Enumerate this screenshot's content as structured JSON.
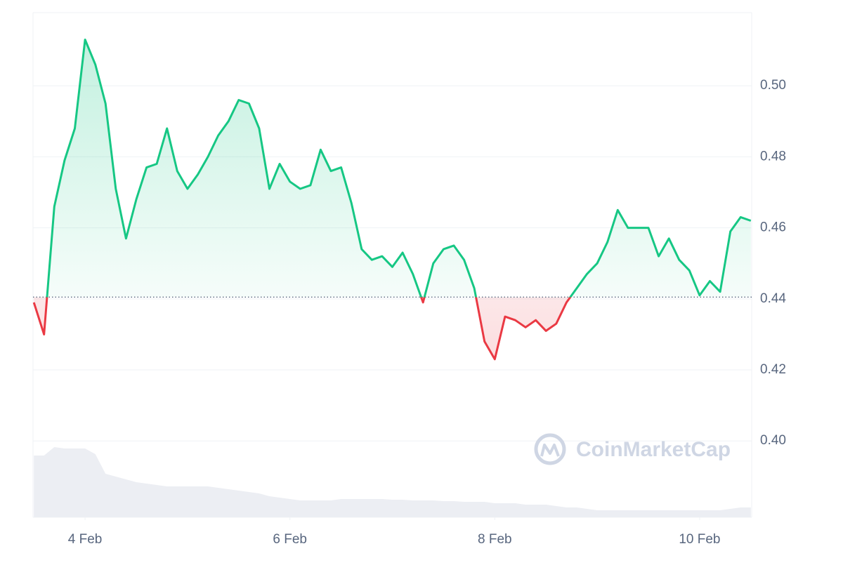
{
  "chart_data": {
    "type": "line",
    "watermark": "CoinMarketCap",
    "x": [
      3.5,
      3.6,
      3.7,
      3.8,
      3.9,
      4.0,
      4.1,
      4.2,
      4.3,
      4.4,
      4.5,
      4.6,
      4.7,
      4.8,
      4.9,
      5.0,
      5.1,
      5.2,
      5.3,
      5.4,
      5.5,
      5.6,
      5.7,
      5.8,
      5.9,
      6.0,
      6.1,
      6.2,
      6.3,
      6.4,
      6.5,
      6.6,
      6.7,
      6.8,
      6.9,
      7.0,
      7.1,
      7.2,
      7.3,
      7.4,
      7.5,
      7.6,
      7.7,
      7.8,
      7.9,
      8.0,
      8.1,
      8.2,
      8.3,
      8.4,
      8.5,
      8.6,
      8.7,
      8.8,
      8.9,
      9.0,
      9.1,
      9.2,
      9.3,
      9.4,
      9.5,
      9.6,
      9.7,
      9.8,
      9.9,
      10.0,
      10.1,
      10.2,
      10.3,
      10.4,
      10.5
    ],
    "series": [
      {
        "name": "Price",
        "color": "#16c784",
        "below_color": "#ea3943",
        "values": [
          0.439,
          0.43,
          0.466,
          0.479,
          0.488,
          0.513,
          0.506,
          0.495,
          0.471,
          0.457,
          0.468,
          0.477,
          0.478,
          0.488,
          0.476,
          0.471,
          0.475,
          0.48,
          0.486,
          0.49,
          0.496,
          0.495,
          0.488,
          0.471,
          0.478,
          0.473,
          0.471,
          0.472,
          0.482,
          0.476,
          0.477,
          0.467,
          0.454,
          0.451,
          0.452,
          0.449,
          0.453,
          0.447,
          0.439,
          0.45,
          0.454,
          0.455,
          0.451,
          0.443,
          0.428,
          0.423,
          0.435,
          0.434,
          0.432,
          0.434,
          0.431,
          0.433,
          0.439,
          0.443,
          0.447,
          0.45,
          0.456,
          0.465,
          0.46,
          0.46,
          0.46,
          0.452,
          0.457,
          0.451,
          0.448,
          0.441,
          0.445,
          0.442,
          0.459,
          0.463,
          0.462
        ]
      },
      {
        "name": "Volume",
        "color": "#eceef3",
        "axis": "volume",
        "values": [
          88,
          88,
          100,
          98,
          98,
          98,
          90,
          62,
          58,
          54,
          50,
          48,
          46,
          44,
          44,
          44,
          44,
          44,
          42,
          40,
          38,
          36,
          34,
          30,
          28,
          26,
          24,
          24,
          24,
          24,
          26,
          26,
          26,
          26,
          26,
          25,
          25,
          24,
          24,
          24,
          23,
          23,
          22,
          22,
          22,
          20,
          20,
          20,
          18,
          18,
          18,
          16,
          14,
          14,
          12,
          10,
          10,
          10,
          10,
          10,
          10,
          10,
          10,
          10,
          10,
          10,
          10,
          10,
          12,
          14,
          14
        ]
      }
    ],
    "baseline": 0.4405,
    "xlim": [
      3.492,
      10.508
    ],
    "xticks": [
      {
        "value": 4,
        "label": "4 Feb"
      },
      {
        "value": 6,
        "label": "6 Feb"
      },
      {
        "value": 8,
        "label": "8 Feb"
      },
      {
        "value": 10,
        "label": "10 Feb"
      }
    ],
    "ylim": [
      0.3785,
      0.5206
    ],
    "yticks": [
      {
        "value": 0.4,
        "label": "0.40"
      },
      0.42,
      0.44,
      0.46,
      0.48,
      {
        "value": 0.5,
        "label": "0.50"
      }
    ],
    "volume_lim": [
      0,
      100
    ],
    "grid": true
  }
}
